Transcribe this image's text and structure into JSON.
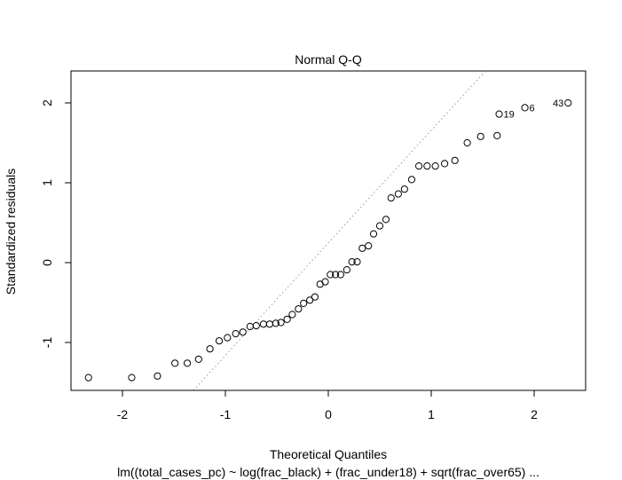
{
  "chart_data": {
    "type": "scatter",
    "title": "Normal Q-Q",
    "xlabel": "Theoretical Quantiles",
    "ylabel": "Standardized residuals",
    "subtitle": "lm((total_cases_pc) ~ log(frac_black) + (frac_under18) + sqrt(frac_over65)  ...",
    "xlim": [
      -2.5,
      2.5
    ],
    "ylim": [
      -1.6,
      2.4
    ],
    "xticks": [
      -2,
      -1,
      0,
      1,
      2
    ],
    "yticks": [
      -1,
      0,
      1,
      2
    ],
    "grid": false,
    "reference_line": {
      "style": "dotted",
      "color": "#999999",
      "intercept": 0.247,
      "slope": 1.41
    },
    "points": [
      {
        "x": -2.33,
        "y": -1.44
      },
      {
        "x": -1.91,
        "y": -1.44
      },
      {
        "x": -1.66,
        "y": -1.42
      },
      {
        "x": -1.49,
        "y": -1.26
      },
      {
        "x": -1.37,
        "y": -1.26
      },
      {
        "x": -1.26,
        "y": -1.21
      },
      {
        "x": -1.15,
        "y": -1.08
      },
      {
        "x": -1.06,
        "y": -0.98
      },
      {
        "x": -0.98,
        "y": -0.94
      },
      {
        "x": -0.9,
        "y": -0.89
      },
      {
        "x": -0.83,
        "y": -0.87
      },
      {
        "x": -0.76,
        "y": -0.8
      },
      {
        "x": -0.7,
        "y": -0.79
      },
      {
        "x": -0.63,
        "y": -0.77
      },
      {
        "x": -0.57,
        "y": -0.77
      },
      {
        "x": -0.51,
        "y": -0.76
      },
      {
        "x": -0.46,
        "y": -0.75
      },
      {
        "x": -0.4,
        "y": -0.71
      },
      {
        "x": -0.35,
        "y": -0.65
      },
      {
        "x": -0.29,
        "y": -0.58
      },
      {
        "x": -0.24,
        "y": -0.51
      },
      {
        "x": -0.18,
        "y": -0.47
      },
      {
        "x": -0.13,
        "y": -0.43
      },
      {
        "x": -0.08,
        "y": -0.27
      },
      {
        "x": -0.03,
        "y": -0.24
      },
      {
        "x": 0.02,
        "y": -0.15
      },
      {
        "x": 0.07,
        "y": -0.15
      },
      {
        "x": 0.12,
        "y": -0.15
      },
      {
        "x": 0.18,
        "y": -0.09
      },
      {
        "x": 0.23,
        "y": 0.01
      },
      {
        "x": 0.28,
        "y": 0.01
      },
      {
        "x": 0.33,
        "y": 0.18
      },
      {
        "x": 0.39,
        "y": 0.21
      },
      {
        "x": 0.44,
        "y": 0.36
      },
      {
        "x": 0.5,
        "y": 0.46
      },
      {
        "x": 0.56,
        "y": 0.54
      },
      {
        "x": 0.61,
        "y": 0.81
      },
      {
        "x": 0.68,
        "y": 0.86
      },
      {
        "x": 0.74,
        "y": 0.92
      },
      {
        "x": 0.81,
        "y": 1.04
      },
      {
        "x": 0.88,
        "y": 1.21
      },
      {
        "x": 0.96,
        "y": 1.21
      },
      {
        "x": 1.04,
        "y": 1.21
      },
      {
        "x": 1.13,
        "y": 1.24
      },
      {
        "x": 1.23,
        "y": 1.28
      },
      {
        "x": 1.35,
        "y": 1.5
      },
      {
        "x": 1.48,
        "y": 1.58
      },
      {
        "x": 1.64,
        "y": 1.59
      },
      {
        "x": 1.66,
        "y": 1.86,
        "label": "19"
      },
      {
        "x": 1.91,
        "y": 1.94,
        "label": "6"
      },
      {
        "x": 2.33,
        "y": 2.0,
        "label": "43"
      }
    ]
  }
}
